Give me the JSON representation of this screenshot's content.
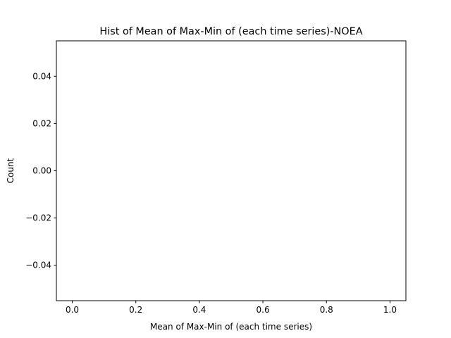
{
  "chart_data": {
    "type": "bar",
    "title": "Hist of Mean of Max-Min of (each time series)-NOEA",
    "xlabel": "Mean of Max-Min of (each time series)",
    "ylabel": "Count",
    "xlim": [
      -0.05,
      1.05
    ],
    "ylim": [
      -0.055,
      0.055
    ],
    "xticks": [
      0.0,
      0.2,
      0.4,
      0.6,
      0.8,
      1.0
    ],
    "xtick_labels": [
      "0.0",
      "0.2",
      "0.4",
      "0.6",
      "0.8",
      "1.0"
    ],
    "yticks": [
      0.04,
      0.02,
      0.0,
      -0.02,
      -0.04
    ],
    "ytick_labels": [
      "0.04",
      "0.02",
      "0.00",
      "−0.02",
      "−0.04"
    ],
    "bins": [],
    "values": [],
    "grid": false,
    "legend": "none"
  }
}
